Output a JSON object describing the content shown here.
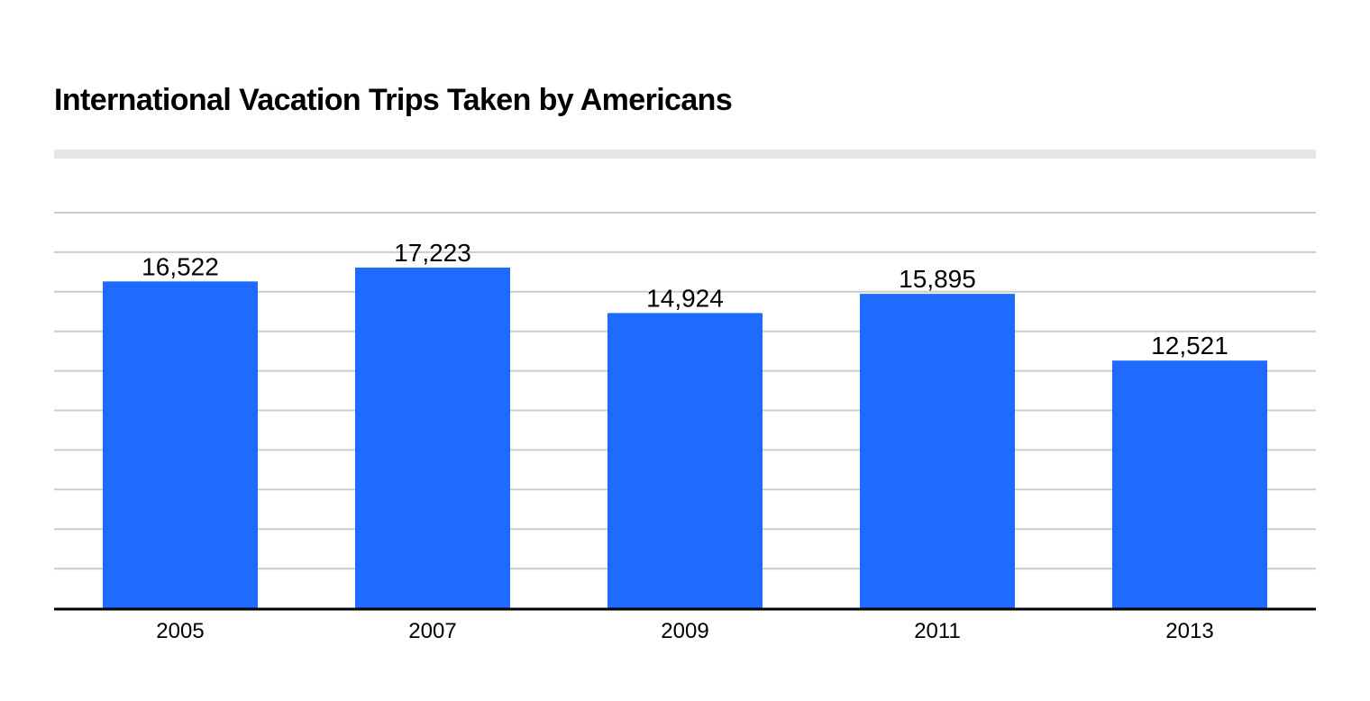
{
  "chart_data": {
    "type": "bar",
    "title": "International Vacation Trips Taken by Americans",
    "categories": [
      "2005",
      "2007",
      "2009",
      "2011",
      "2013"
    ],
    "values": [
      16522,
      17223,
      14924,
      15895,
      12521
    ],
    "value_labels": [
      "16,522",
      "17,223",
      "14,924",
      "15,895",
      "12,521"
    ],
    "ylim": [
      0,
      20000
    ],
    "grid": true,
    "bar_color": "#1f6bff",
    "xlabel": "",
    "ylabel": ""
  }
}
